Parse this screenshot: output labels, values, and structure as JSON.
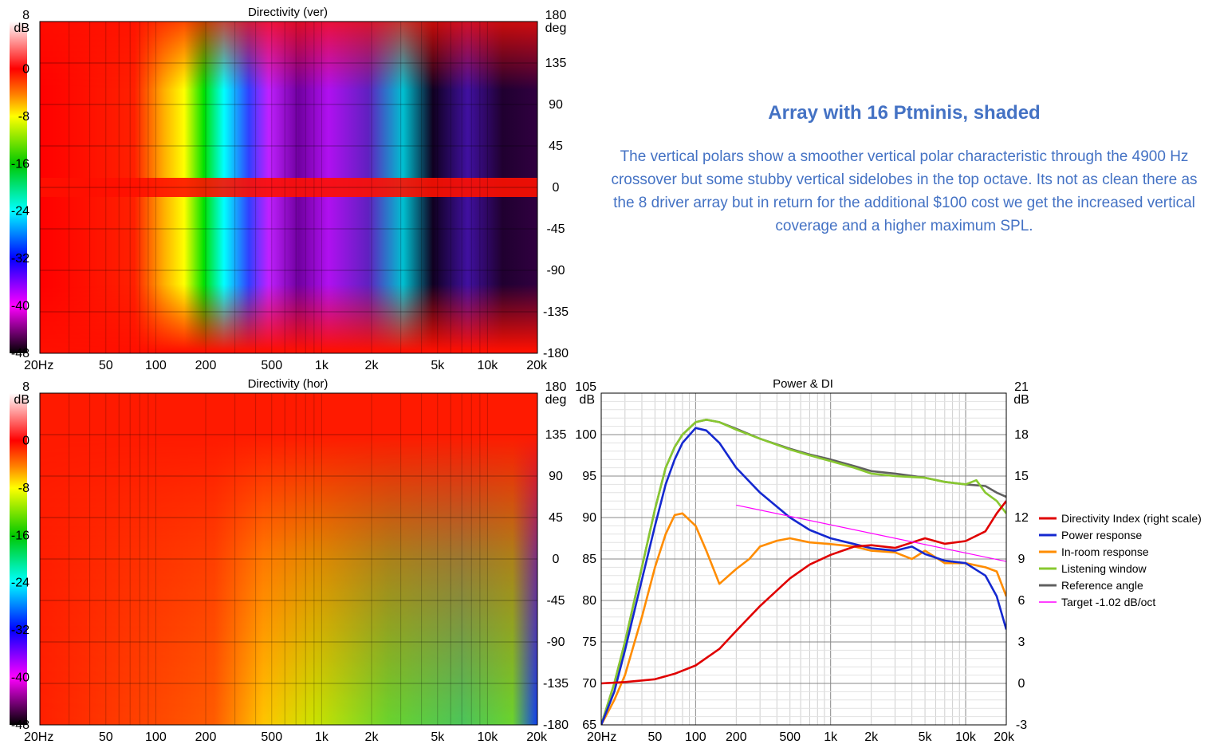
{
  "note": {
    "title": "Array with 16 Ptminis, shaded",
    "body": "The vertical polars show a smoother vertical polar characteristic through the 4900 Hz crossover but some stubby vertical sidelobes in the top octave. Its not as clean there as the 8 driver array but in return for the additional $100 cost we get the increased vertical coverage and a higher maximum SPL."
  },
  "colors": {
    "note_text": "#4472c4",
    "colormap": [
      "#ff0000",
      "#ff8000",
      "#ffff00",
      "#00c800",
      "#00ffff",
      "#0000ff",
      "#ff00ff",
      "#000000"
    ]
  },
  "chart_data": [
    {
      "type": "heatmap",
      "title": "Directivity (ver)",
      "x_scale": "log",
      "xlim": [
        20,
        20000
      ],
      "x_ticks": [
        {
          "v": 20,
          "label": "20Hz"
        },
        {
          "v": 50,
          "label": "50"
        },
        {
          "v": 100,
          "label": "100"
        },
        {
          "v": 200,
          "label": "200"
        },
        {
          "v": 500,
          "label": "500"
        },
        {
          "v": 1000,
          "label": "1k"
        },
        {
          "v": 2000,
          "label": "2k"
        },
        {
          "v": 5000,
          "label": "5k"
        },
        {
          "v": 10000,
          "label": "10k"
        },
        {
          "v": 20000,
          "label": "20k"
        }
      ],
      "ylim": [
        -180,
        180
      ],
      "y_unit": "deg",
      "y_ticks": [
        "180",
        "135",
        "90",
        "45",
        "0",
        "-45",
        "-90",
        "-135",
        "-180"
      ],
      "scale_unit": "dB",
      "scale_range": [
        -48,
        8
      ],
      "scale_ticks": [
        "8",
        "0",
        "-8",
        "-16",
        "-24",
        "-32",
        "-40",
        "-48"
      ],
      "grid": true
    },
    {
      "type": "heatmap",
      "title": "Directivity (hor)",
      "x_scale": "log",
      "xlim": [
        20,
        20000
      ],
      "x_ticks": [
        {
          "v": 20,
          "label": "20Hz"
        },
        {
          "v": 50,
          "label": "50"
        },
        {
          "v": 100,
          "label": "100"
        },
        {
          "v": 200,
          "label": "200"
        },
        {
          "v": 500,
          "label": "500"
        },
        {
          "v": 1000,
          "label": "1k"
        },
        {
          "v": 2000,
          "label": "2k"
        },
        {
          "v": 5000,
          "label": "5k"
        },
        {
          "v": 10000,
          "label": "10k"
        },
        {
          "v": 20000,
          "label": "20k"
        }
      ],
      "ylim": [
        -180,
        180
      ],
      "y_unit": "deg",
      "y_ticks": [
        "180",
        "135",
        "90",
        "45",
        "0",
        "-45",
        "-90",
        "-135",
        "-180"
      ],
      "scale_unit": "dB",
      "scale_range": [
        -48,
        8
      ],
      "scale_ticks": [
        "8",
        "0",
        "-8",
        "-16",
        "-24",
        "-32",
        "-40",
        "-48"
      ],
      "grid": true
    },
    {
      "type": "line",
      "title": "Power & DI",
      "x_scale": "log",
      "xlim": [
        20,
        20000
      ],
      "x_ticks": [
        {
          "v": 20,
          "label": "20Hz"
        },
        {
          "v": 50,
          "label": "50"
        },
        {
          "v": 100,
          "label": "100"
        },
        {
          "v": 200,
          "label": "200"
        },
        {
          "v": 500,
          "label": "500"
        },
        {
          "v": 1000,
          "label": "1k"
        },
        {
          "v": 2000,
          "label": "2k"
        },
        {
          "v": 5000,
          "label": "5k"
        },
        {
          "v": 10000,
          "label": "10k"
        },
        {
          "v": 20000,
          "label": "20k"
        }
      ],
      "ylim": [
        65,
        105
      ],
      "y_unit": "dB",
      "y_ticks": [
        105,
        100,
        95,
        90,
        85,
        80,
        75,
        70,
        65
      ],
      "y2lim": [
        -3,
        21
      ],
      "y2_unit": "dB",
      "y2_ticks": [
        21,
        18,
        15,
        12,
        9,
        6,
        3,
        0,
        -3
      ],
      "grid": true,
      "legend_position": "right",
      "series": [
        {
          "name": "Directivity Index (right scale)",
          "color": "#e00000",
          "axis": "right",
          "x": [
            20,
            30,
            50,
            70,
            100,
            150,
            200,
            300,
            500,
            700,
            1000,
            1500,
            2000,
            3000,
            5000,
            7000,
            10000,
            14000,
            17000,
            20000
          ],
          "y": [
            0.0,
            0.1,
            0.3,
            0.7,
            1.3,
            2.5,
            3.8,
            5.6,
            7.6,
            8.6,
            9.3,
            9.9,
            10.0,
            9.8,
            10.5,
            10.1,
            10.3,
            11.0,
            12.3,
            13.2
          ]
        },
        {
          "name": "Power response",
          "color": "#1428d0",
          "axis": "left",
          "x": [
            20,
            25,
            30,
            40,
            50,
            60,
            70,
            80,
            100,
            120,
            150,
            200,
            300,
            500,
            700,
            1000,
            1500,
            2000,
            3000,
            4000,
            5000,
            7000,
            10000,
            14000,
            17000,
            20000
          ],
          "y": [
            65,
            69,
            74,
            82.5,
            89,
            94,
            97,
            99,
            100.8,
            100.5,
            99,
            96,
            93,
            90,
            88.5,
            87.5,
            86.8,
            86.3,
            86.0,
            86.5,
            85.6,
            84.8,
            84.5,
            83.0,
            80.5,
            76.5
          ]
        },
        {
          "name": "In-room response",
          "color": "#ff8c00",
          "axis": "left",
          "x": [
            20,
            25,
            30,
            40,
            50,
            60,
            70,
            80,
            100,
            120,
            150,
            200,
            250,
            300,
            400,
            500,
            700,
            1000,
            1500,
            2000,
            3000,
            4000,
            5000,
            7000,
            10000,
            14000,
            17000,
            20000
          ],
          "y": [
            65,
            68,
            71,
            78,
            84,
            88,
            90.3,
            90.5,
            89,
            86,
            82,
            83.8,
            85.0,
            86.5,
            87.2,
            87.5,
            87.0,
            86.8,
            86.5,
            86.0,
            85.8,
            85.0,
            86.0,
            84.5,
            84.5,
            84.0,
            83.5,
            80.5
          ]
        },
        {
          "name": "Listening window",
          "color": "#88c830",
          "axis": "left",
          "x": [
            20,
            25,
            30,
            40,
            50,
            60,
            70,
            80,
            100,
            120,
            150,
            200,
            300,
            500,
            700,
            1000,
            1500,
            2000,
            3000,
            5000,
            7000,
            10000,
            12000,
            14000,
            17000,
            20000
          ],
          "y": [
            65,
            70,
            75,
            84,
            91,
            96,
            98.5,
            100,
            101.5,
            101.8,
            101.5,
            100.6,
            99.5,
            98.2,
            97.5,
            96.8,
            96.0,
            95.3,
            95.0,
            94.8,
            94.3,
            94.0,
            94.5,
            93.0,
            92.0,
            90.5
          ]
        },
        {
          "name": "Reference angle",
          "color": "#606060",
          "axis": "left",
          "x": [
            20,
            25,
            30,
            40,
            50,
            60,
            70,
            80,
            100,
            120,
            150,
            200,
            300,
            500,
            700,
            1000,
            1500,
            2000,
            3000,
            5000,
            7000,
            10000,
            14000,
            17000,
            20000
          ],
          "y": [
            65,
            70,
            75,
            84,
            91,
            96,
            98.5,
            100,
            101.5,
            101.8,
            101.5,
            100.7,
            99.5,
            98.3,
            97.6,
            97.0,
            96.2,
            95.6,
            95.3,
            94.8,
            94.3,
            94.0,
            93.8,
            93.0,
            92.5
          ]
        },
        {
          "name": "Target -1.02 dB/oct",
          "color": "#ff00ff",
          "axis": "left",
          "x": [
            200,
            20000
          ],
          "y": [
            91.5,
            84.7
          ]
        }
      ]
    }
  ]
}
